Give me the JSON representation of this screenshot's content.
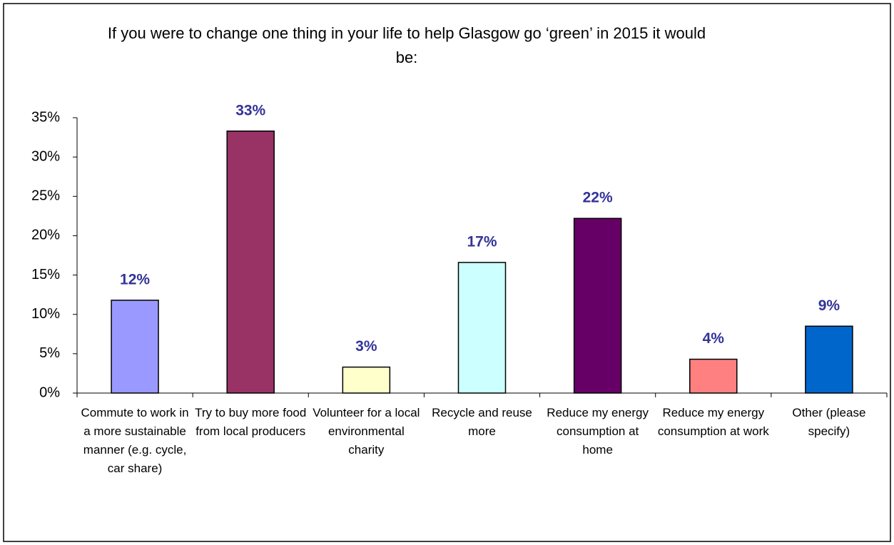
{
  "chart_data": {
    "type": "bar",
    "title": "If you were to change one thing in your life to help Glasgow go ‘green’ in 2015 it would be:",
    "categories": [
      "Commute to work in a more sustainable manner (e.g. cycle, car share)",
      "Try to buy more food from local producers",
      "Volunteer for a local environmental charity",
      "Recycle and reuse more",
      "Reduce my energy consumption at home",
      "Reduce my energy consumption at work",
      "Other (please specify)"
    ],
    "values": [
      11.8,
      33.3,
      3.3,
      16.6,
      22.2,
      4.3,
      8.5
    ],
    "value_labels": [
      "12%",
      "33%",
      "3%",
      "17%",
      "22%",
      "4%",
      "9%"
    ],
    "colors": [
      "#9999ff",
      "#993366",
      "#ffffcc",
      "#ccffff",
      "#660066",
      "#ff8080",
      "#0066cc"
    ],
    "ylim": [
      0,
      35
    ],
    "yticks": [
      {
        "value": 0,
        "label": "0%"
      },
      {
        "value": 5,
        "label": "5%"
      },
      {
        "value": 10,
        "label": "10%"
      },
      {
        "value": 15,
        "label": "15%"
      },
      {
        "value": 20,
        "label": "20%"
      },
      {
        "value": 25,
        "label": "25%"
      },
      {
        "value": 30,
        "label": "30%"
      },
      {
        "value": 35,
        "label": "35%"
      }
    ],
    "grid": false
  }
}
